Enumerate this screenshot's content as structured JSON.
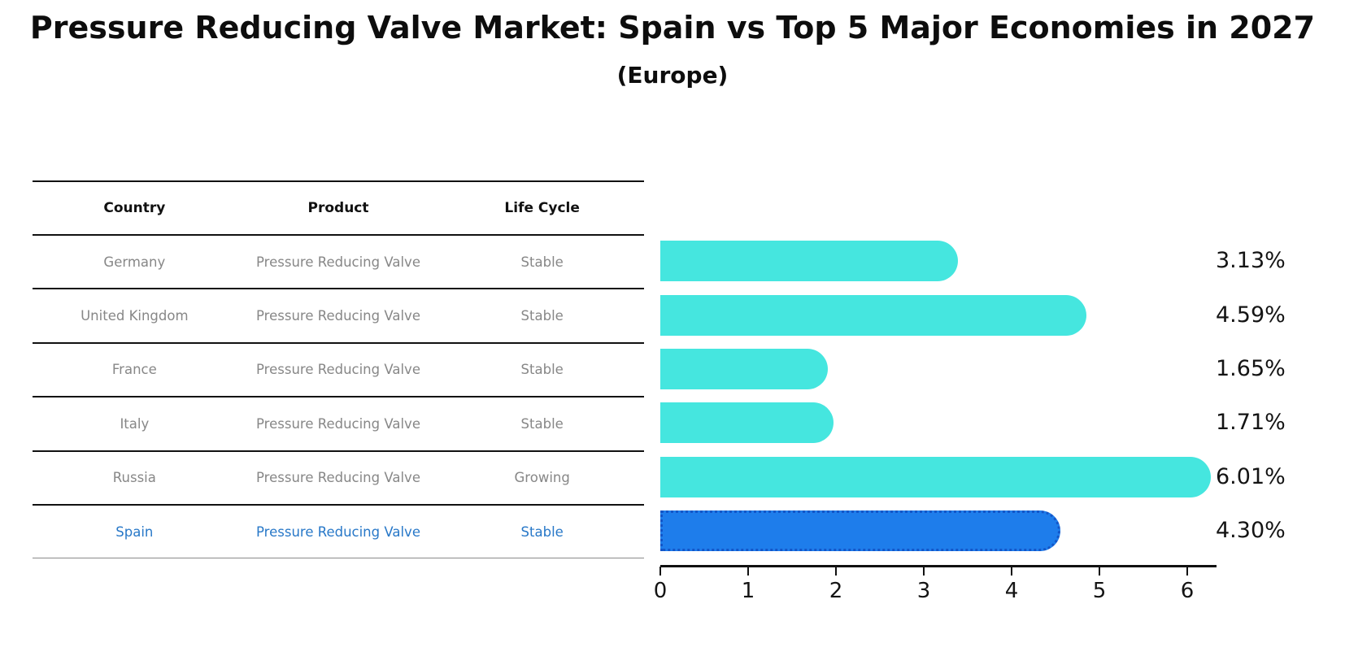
{
  "title": "Pressure Reducing Valve Market: Spain vs Top 5 Major Economies in 2027",
  "subtitle": "(Europe)",
  "table": {
    "headers": [
      "Country",
      "Product",
      "Life Cycle"
    ],
    "rows": [
      {
        "country": "Germany",
        "product": "Pressure Reducing Valve",
        "life_cycle": "Stable",
        "highlight": false
      },
      {
        "country": "United Kingdom",
        "product": "Pressure Reducing Valve",
        "life_cycle": "Stable",
        "highlight": false
      },
      {
        "country": "France",
        "product": "Pressure Reducing Valve",
        "life_cycle": "Stable",
        "highlight": false
      },
      {
        "country": "Italy",
        "product": "Pressure Reducing Valve",
        "life_cycle": "Stable",
        "highlight": false
      },
      {
        "country": "Russia",
        "product": "Pressure Reducing Valve",
        "life_cycle": "Growing",
        "highlight": false
      },
      {
        "country": "Spain",
        "product": "Pressure Reducing Valve",
        "life_cycle": "Stable",
        "highlight": true
      }
    ]
  },
  "chart_data": {
    "type": "bar",
    "orientation": "horizontal",
    "title": "Pressure Reducing Valve Market: Spain vs Top 5 Major Economies in 2027",
    "subtitle": "(Europe)",
    "categories": [
      "Germany",
      "United Kingdom",
      "France",
      "Italy",
      "Russia",
      "Spain"
    ],
    "values": [
      3.13,
      4.59,
      1.65,
      1.71,
      6.01,
      4.3
    ],
    "value_labels": [
      "3.13%",
      "4.59%",
      "1.65%",
      "1.71%",
      "6.01%",
      "4.30%"
    ],
    "x_ticks": [
      "0",
      "1",
      "2",
      "3",
      "4",
      "5",
      "6"
    ],
    "xlim": [
      0,
      6.31
    ],
    "grid": false,
    "legend": "none",
    "bar_color": "#45e6df",
    "highlight_bar_color": "#1e7deb",
    "highlight_edge_color": "#1356c8",
    "highlight_index": 5
  },
  "colors": {
    "background": "#ffffff",
    "table_text": "#878787",
    "highlight_text": "#2878c8",
    "header_text": "#111111",
    "axis_text": "#141414"
  }
}
